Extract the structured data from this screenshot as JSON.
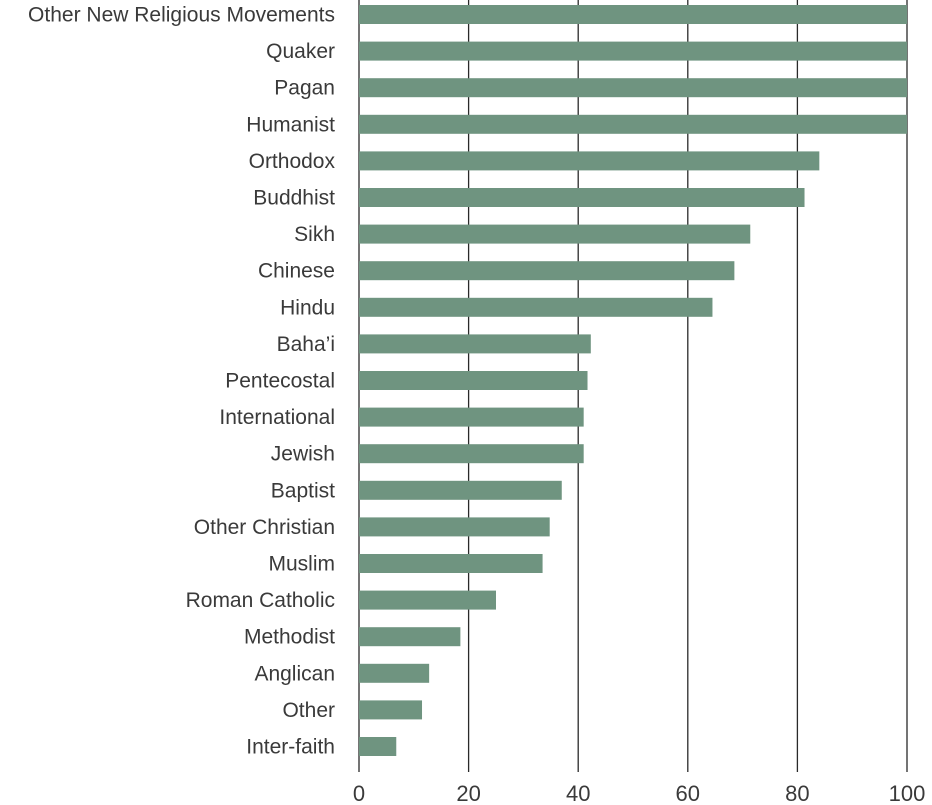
{
  "chart_data": {
    "type": "bar",
    "orientation": "horizontal",
    "title": "",
    "xlabel": "",
    "ylabel": "",
    "xlim": [
      0,
      100
    ],
    "x_ticks": [
      0,
      20,
      40,
      60,
      80,
      100
    ],
    "grid": "vertical",
    "bar_color": "#6f9480",
    "categories": [
      "Other New Religious Movements",
      "Quaker",
      "Pagan",
      "Humanist",
      "Orthodox",
      "Buddhist",
      "Sikh",
      "Chinese",
      "Hindu",
      "Baha’i",
      "Pentecostal",
      "International",
      "Jewish",
      "Baptist",
      "Other Christian",
      "Muslim",
      "Roman Catholic",
      "Methodist",
      "Anglican",
      "Other",
      "Inter-faith"
    ],
    "values": [
      100,
      100,
      100,
      100,
      84,
      81.3,
      71.4,
      68.5,
      64.5,
      42.3,
      41.7,
      41,
      41,
      37,
      34.8,
      33.5,
      25,
      18.5,
      12.8,
      11.5,
      6.8
    ]
  }
}
